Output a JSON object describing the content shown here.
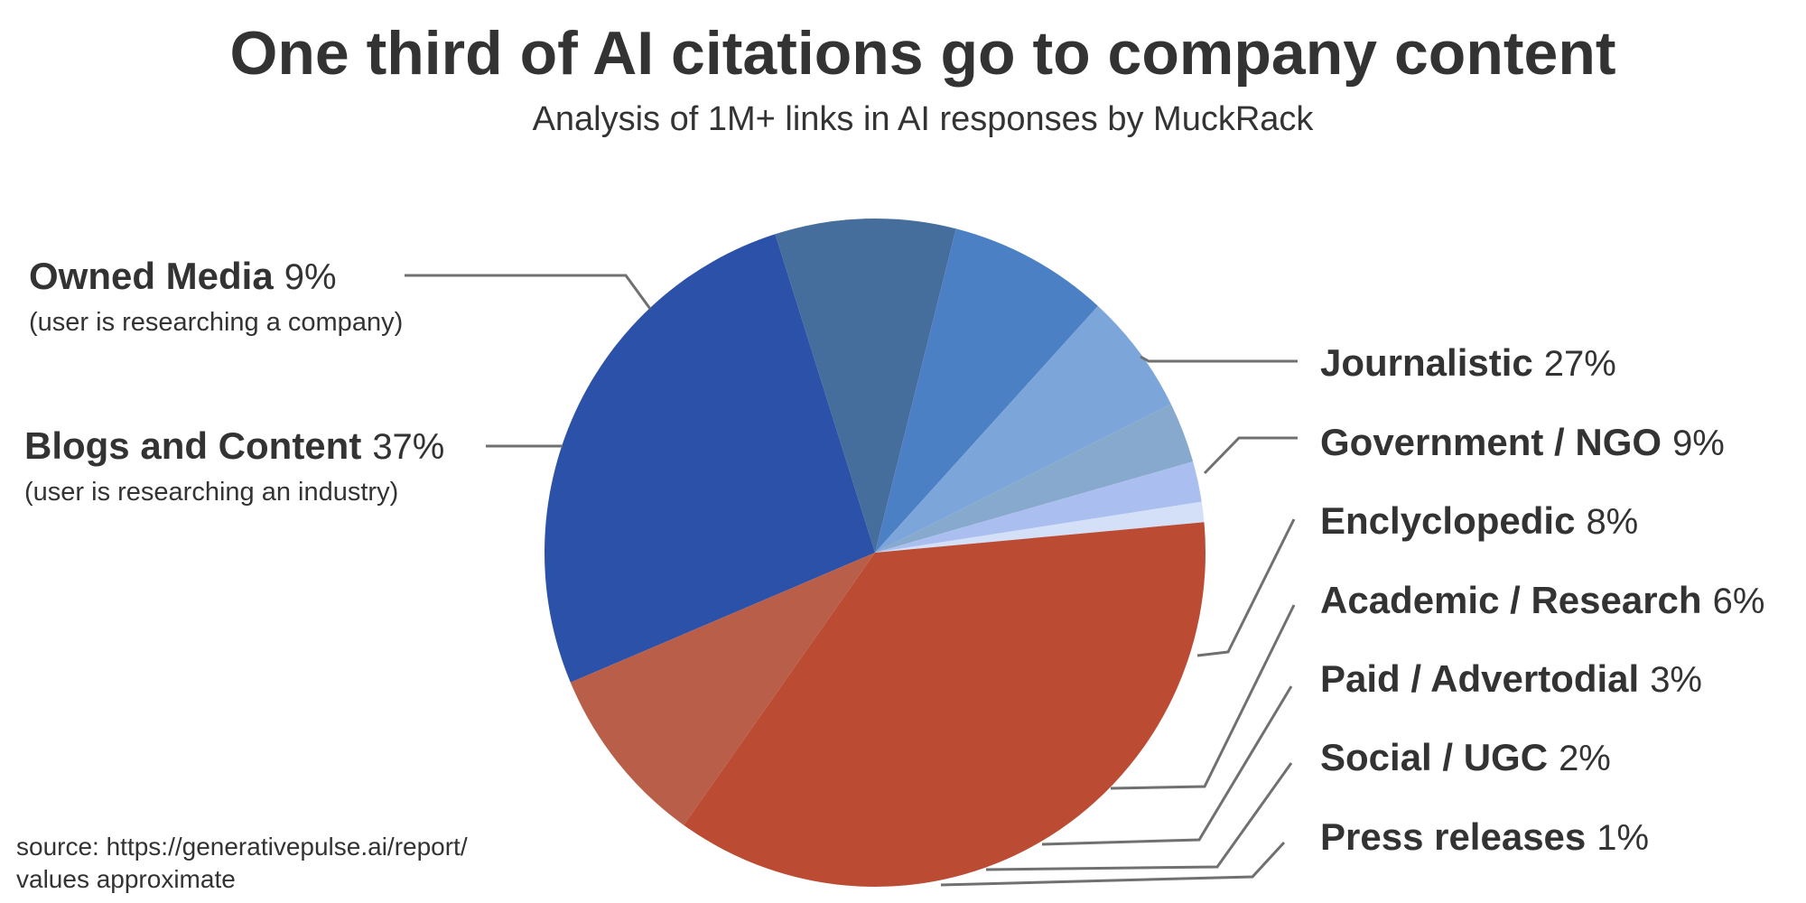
{
  "chart_data": {
    "type": "pie",
    "title": "One third of AI citations go to company content",
    "subtitle": "Analysis of 1M+ links in AI responses by MuckRack",
    "unit": "%",
    "slices": [
      {
        "key": "journalistic",
        "label": "Journalistic",
        "value": 27,
        "pct": "27%",
        "color": "#2c51a8"
      },
      {
        "key": "government",
        "label": "Government / NGO",
        "value": 9,
        "pct": "9%",
        "color": "#466e9c"
      },
      {
        "key": "encyclopedic",
        "label": "Enclyclopedic",
        "value": 8,
        "pct": "8%",
        "color": "#4c80c4"
      },
      {
        "key": "academic",
        "label": "Academic / Research",
        "value": 6,
        "pct": "6%",
        "color": "#7ca5d9"
      },
      {
        "key": "paid",
        "label": "Paid / Advertodial",
        "value": 3,
        "pct": "3%",
        "color": "#86a9cd"
      },
      {
        "key": "social",
        "label": "Social / UGC",
        "value": 2,
        "pct": "2%",
        "color": "#aabfef"
      },
      {
        "key": "press",
        "label": "Press releases",
        "value": 1,
        "pct": "1%",
        "color": "#d4dff8"
      },
      {
        "key": "blogs",
        "label": "Blogs and Content",
        "value": 37,
        "pct": "37%",
        "note": "(user is researching an industry)",
        "color": "#bb4b32"
      },
      {
        "key": "owned",
        "label": "Owned Media",
        "value": 9,
        "pct": "9%",
        "note": "(user is researching a company)",
        "color": "#b95f49"
      }
    ],
    "source_lines": [
      "source: https://generativepulse.ai/report/",
      "values approximate"
    ]
  }
}
